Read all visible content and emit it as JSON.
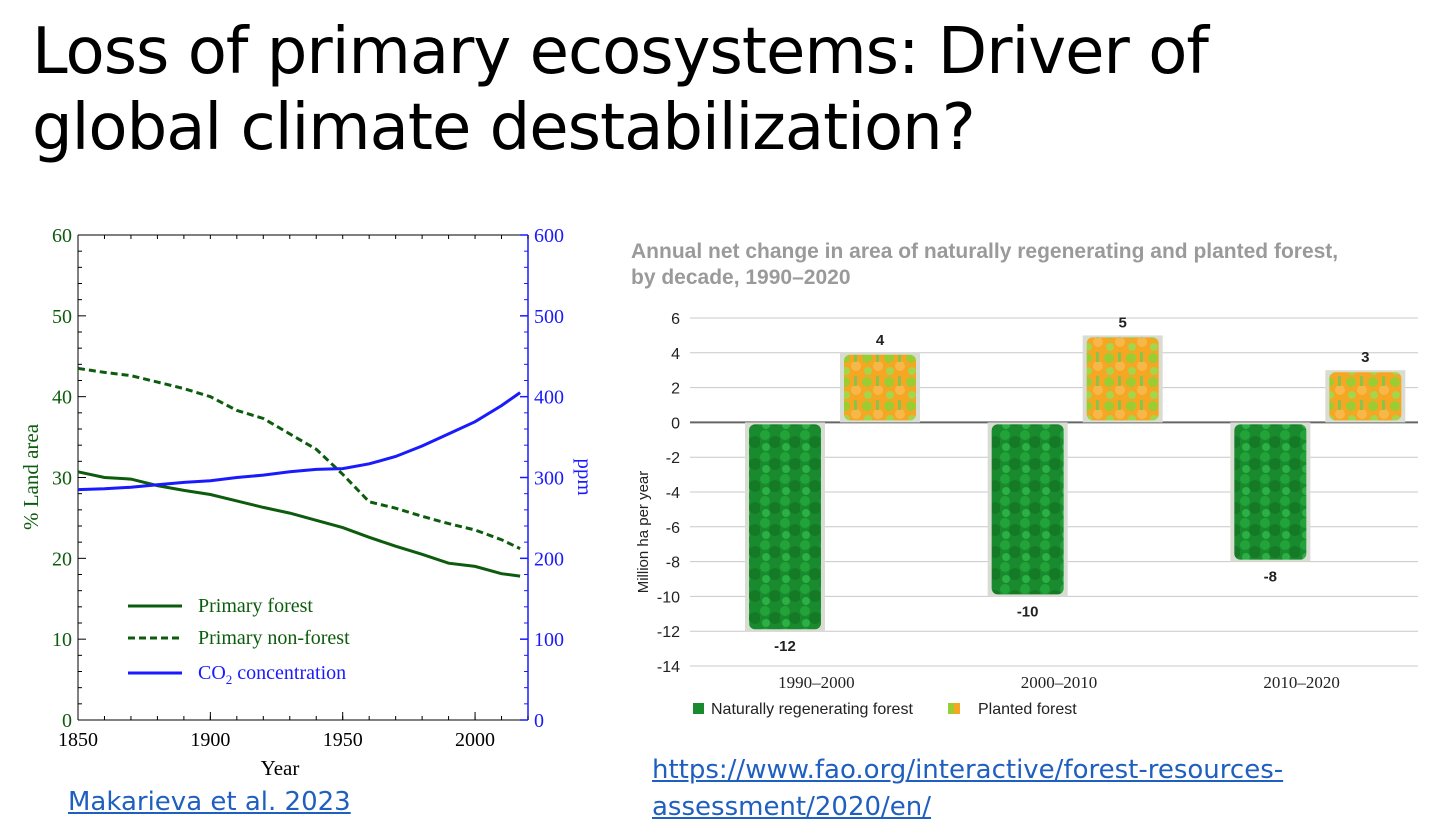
{
  "slide": {
    "title_line1": "Loss of primary ecosystems: Driver of",
    "title_line2": "global climate destabilization?"
  },
  "links": {
    "left_citation": "Makarieva et al. 2023",
    "right_url_line1": "https://www.fao.org/interactive/forest-resources-",
    "right_url_line2": "assessment/2020/en/"
  },
  "colors": {
    "primary_forest": "#0d5c0d",
    "co2": "#1a1aff",
    "natural_forest": "#1a8a2e",
    "planted_forest_orange": "#f5a623",
    "planted_forest_green": "#9acd32",
    "chart_title_gray": "#9a9a9a"
  },
  "chart_data": [
    {
      "type": "line",
      "xlabel": "Year",
      "ylabel": "% Land area",
      "y2label": "ppm",
      "xlim": [
        1850,
        2020
      ],
      "ylim": [
        0,
        60
      ],
      "y2lim": [
        0,
        600
      ],
      "x_ticks": [
        1850,
        1900,
        1950,
        2000
      ],
      "y_ticks": [
        0,
        10,
        20,
        30,
        40,
        50,
        60
      ],
      "y2_ticks": [
        0,
        100,
        200,
        300,
        400,
        500,
        600
      ],
      "legend_position": "bottom-left",
      "series": [
        {
          "name": "Primary forest",
          "axis": "left",
          "style": "solid",
          "color": "#0d5c0d",
          "x": [
            1850,
            1860,
            1870,
            1880,
            1890,
            1900,
            1910,
            1920,
            1930,
            1940,
            1950,
            1960,
            1970,
            1980,
            1990,
            2000,
            2010,
            2017
          ],
          "y": [
            30.7,
            30.0,
            29.8,
            29.0,
            28.4,
            27.9,
            27.1,
            26.3,
            25.6,
            24.7,
            23.8,
            22.6,
            21.5,
            20.5,
            19.4,
            19.0,
            18.1,
            17.8
          ]
        },
        {
          "name": "Primary non-forest",
          "axis": "left",
          "style": "dashed",
          "color": "#0d5c0d",
          "x": [
            1850,
            1860,
            1870,
            1880,
            1890,
            1900,
            1910,
            1920,
            1930,
            1940,
            1950,
            1960,
            1970,
            1980,
            1990,
            2000,
            2010,
            2017
          ],
          "y": [
            43.5,
            43.0,
            42.6,
            41.8,
            41.0,
            40.0,
            38.3,
            37.3,
            35.4,
            33.5,
            30.4,
            27.0,
            26.2,
            25.2,
            24.3,
            23.5,
            22.3,
            21.2
          ]
        },
        {
          "name": "CO2 concentration",
          "label_main": "CO",
          "label_sub": "2",
          "label_rest": " concentration",
          "axis": "right",
          "style": "solid",
          "color": "#1a1aff",
          "x": [
            1850,
            1860,
            1870,
            1880,
            1890,
            1900,
            1910,
            1920,
            1930,
            1940,
            1950,
            1960,
            1970,
            1980,
            1990,
            2000,
            2010,
            2017
          ],
          "y": [
            285,
            286,
            288,
            291,
            294,
            296,
            300,
            303,
            307,
            310,
            311,
            317,
            326,
            339,
            354,
            369,
            389,
            405
          ]
        }
      ]
    },
    {
      "type": "bar",
      "title": "Annual net change in area of naturally regenerating and planted forest,",
      "title_line2": "by decade, 1990–2020",
      "ylabel": "Million ha per year",
      "ylim": [
        -14,
        6
      ],
      "y_ticks": [
        6,
        4,
        2,
        0,
        -2,
        -4,
        -6,
        -8,
        -10,
        -12,
        -14
      ],
      "categories": [
        "1990–2000",
        "2000–2010",
        "2010–2020"
      ],
      "legend_position": "bottom-left",
      "series": [
        {
          "name": "Naturally regenerating forest",
          "color": "#1a8a2e",
          "values": [
            -12,
            -10,
            -8
          ],
          "labels": [
            "-12",
            "-10",
            "-8"
          ]
        },
        {
          "name": "Planted forest",
          "color": "#f5a623",
          "values": [
            4,
            5,
            3
          ],
          "labels": [
            "4",
            "5",
            "3"
          ]
        }
      ]
    }
  ]
}
